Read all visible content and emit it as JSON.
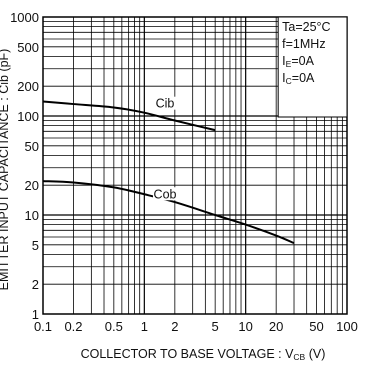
{
  "chart_data": {
    "type": "line",
    "xlabel": "COLLECTOR TO BASE VOLTAGE : V",
    "xlabel_sub": "CB",
    "xlabel_unit": " (V)",
    "ylabel": "EMITTER INPUT CAPACITANCE : Cib (pF)",
    "x_scale": "log",
    "y_scale": "log",
    "xlim": [
      0.1,
      100
    ],
    "ylim": [
      1,
      1000
    ],
    "grid": true,
    "x_ticks": [
      0.1,
      0.2,
      0.5,
      1,
      2,
      5,
      10,
      20,
      50,
      100
    ],
    "x_tick_labels": [
      "0.1",
      "0.2",
      "0.5",
      "1",
      "2",
      "5",
      "10",
      "20",
      "50",
      "100"
    ],
    "y_ticks": [
      1,
      2,
      5,
      10,
      20,
      50,
      100,
      200,
      500,
      1000
    ],
    "y_tick_labels": [
      "1",
      "2",
      "5",
      "10",
      "20",
      "50",
      "100",
      "200",
      "500",
      "1000"
    ],
    "conditions": [
      {
        "main": "Ta=25°C"
      },
      {
        "main": "f=1MHz"
      },
      {
        "main": "I",
        "sub": "E",
        "rest": "=0A"
      },
      {
        "main": "I",
        "sub": "C",
        "rest": "=0A"
      }
    ],
    "series": [
      {
        "name": "Cib",
        "x": [
          0.1,
          0.2,
          0.5,
          1,
          2,
          5
        ],
        "y": [
          140,
          132,
          122,
          108,
          90,
          72
        ]
      },
      {
        "name": "Cob",
        "x": [
          0.1,
          0.2,
          0.5,
          1,
          2,
          5,
          10,
          20,
          30
        ],
        "y": [
          22,
          21.3,
          19,
          16.2,
          13.5,
          10,
          8,
          6.2,
          5.2
        ]
      }
    ]
  }
}
